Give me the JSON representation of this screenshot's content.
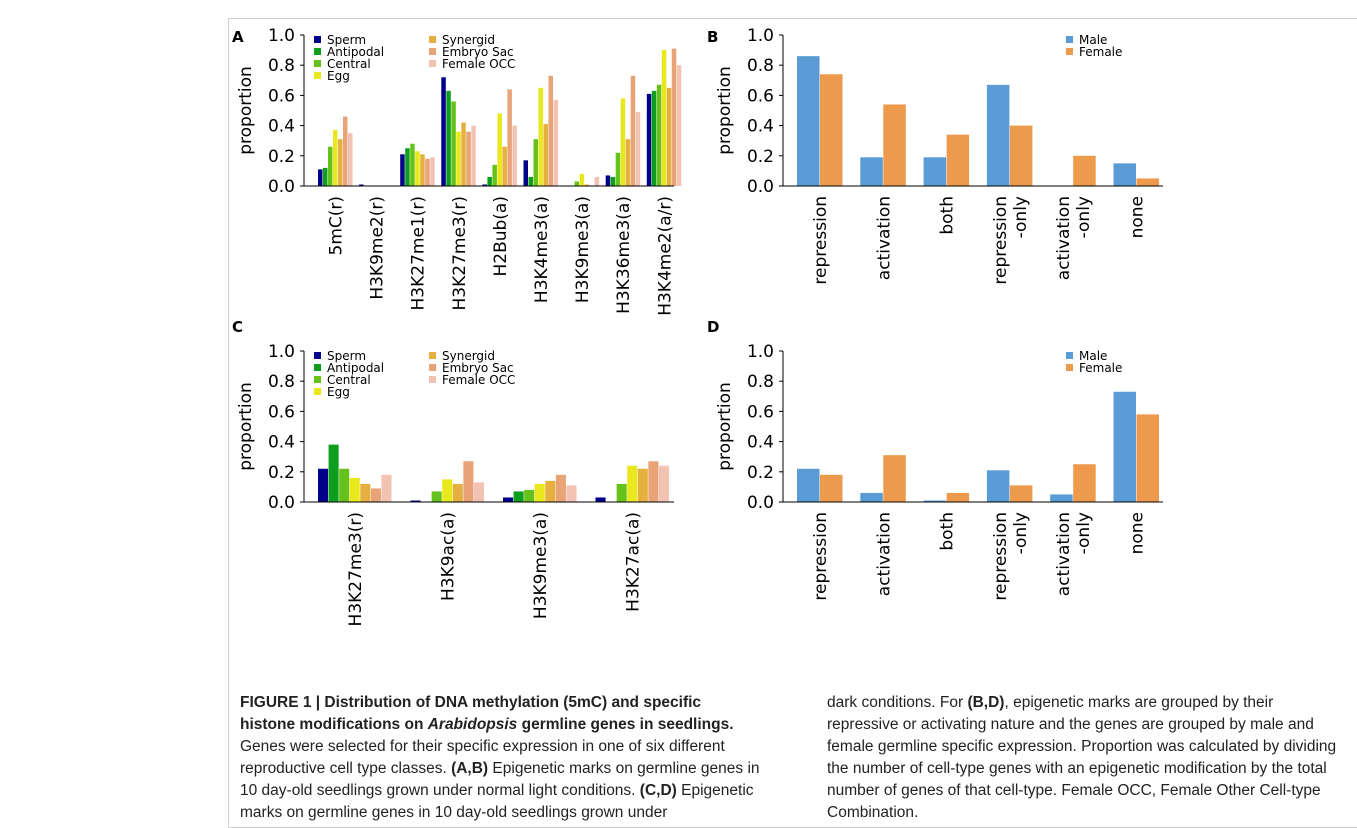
{
  "panels": [
    {
      "letter": "A",
      "chart_data": {
        "type": "bar",
        "ylabel": "proportion",
        "ylim": [
          0,
          1.0
        ],
        "yticks": [
          "0.0",
          "0.2",
          "0.4",
          "0.6",
          "0.8",
          "1.0"
        ],
        "legend_position": "top-left",
        "categories": [
          "5mC(r)",
          "H3K9me2(r)",
          "H3K27me1(r)",
          "H3K27me3(r)",
          "H2Bub(a)",
          "H3K4me3(a)",
          "H3K9me3(a)",
          "H3K36me3(a)",
          "H3K4me2(a/r)"
        ],
        "series": [
          {
            "name": "Sperm",
            "color": "#00008b",
            "values": [
              0.11,
              0.01,
              0.21,
              0.72,
              0.01,
              0.17,
              0.0,
              0.07,
              0.61
            ]
          },
          {
            "name": "Antipodal",
            "color": "#0d9e1e",
            "values": [
              0.12,
              0.0,
              0.25,
              0.63,
              0.06,
              0.06,
              0.0,
              0.06,
              0.63
            ]
          },
          {
            "name": "Central",
            "color": "#66c21a",
            "values": [
              0.26,
              0.0,
              0.28,
              0.56,
              0.14,
              0.31,
              0.03,
              0.22,
              0.67
            ]
          },
          {
            "name": "Egg",
            "color": "#e8e81c",
            "values": [
              0.37,
              0.0,
              0.23,
              0.36,
              0.48,
              0.65,
              0.08,
              0.58,
              0.9
            ]
          },
          {
            "name": "Synergid",
            "color": "#e5b040",
            "values": [
              0.31,
              0.0,
              0.21,
              0.42,
              0.26,
              0.41,
              0.01,
              0.31,
              0.65
            ]
          },
          {
            "name": "Embryo Sac",
            "color": "#e8a377",
            "values": [
              0.46,
              0.0,
              0.18,
              0.36,
              0.64,
              0.73,
              0.0,
              0.73,
              0.91
            ]
          },
          {
            "name": "Female OCC",
            "color": "#f2c3b3",
            "values": [
              0.35,
              0.0,
              0.19,
              0.4,
              0.4,
              0.57,
              0.06,
              0.49,
              0.8
            ]
          }
        ]
      }
    },
    {
      "letter": "B",
      "chart_data": {
        "type": "bar",
        "ylabel": "proportion",
        "ylim": [
          0,
          1.0
        ],
        "yticks": [
          "0.0",
          "0.2",
          "0.4",
          "0.6",
          "0.8",
          "1.0"
        ],
        "legend_position": "top-right",
        "categories": [
          "repression",
          "activation",
          "both",
          "repression\n-only",
          "activation\n-only",
          "none"
        ],
        "series": [
          {
            "name": "Male",
            "color": "#5a9bd5",
            "values": [
              0.86,
              0.19,
              0.19,
              0.67,
              0.0,
              0.15
            ]
          },
          {
            "name": "Female",
            "color": "#ed9a4c",
            "values": [
              0.74,
              0.54,
              0.34,
              0.4,
              0.2,
              0.05
            ]
          }
        ]
      }
    },
    {
      "letter": "C",
      "chart_data": {
        "type": "bar",
        "ylabel": "proportion",
        "ylim": [
          0,
          1.0
        ],
        "yticks": [
          "0.0",
          "0.2",
          "0.4",
          "0.6",
          "0.8",
          "1.0"
        ],
        "legend_position": "top-left",
        "categories": [
          "H3K27me3(r)",
          "H3K9ac(a)",
          "H3K9me3(a)",
          "H3K27ac(a)"
        ],
        "series": [
          {
            "name": "Sperm",
            "color": "#00008b",
            "values": [
              0.22,
              0.01,
              0.03,
              0.03
            ]
          },
          {
            "name": "Antipodal",
            "color": "#0d9e1e",
            "values": [
              0.38,
              0.0,
              0.07,
              0.0
            ]
          },
          {
            "name": "Central",
            "color": "#66c21a",
            "values": [
              0.22,
              0.07,
              0.08,
              0.12
            ]
          },
          {
            "name": "Egg",
            "color": "#e8e81c",
            "values": [
              0.16,
              0.15,
              0.12,
              0.24
            ]
          },
          {
            "name": "Synergid",
            "color": "#e5b040",
            "values": [
              0.12,
              0.12,
              0.14,
              0.22
            ]
          },
          {
            "name": "Embryo Sac",
            "color": "#e8a377",
            "values": [
              0.09,
              0.27,
              0.18,
              0.27
            ]
          },
          {
            "name": "Female OCC",
            "color": "#f2c3b3",
            "values": [
              0.18,
              0.13,
              0.11,
              0.24
            ]
          }
        ]
      }
    },
    {
      "letter": "D",
      "chart_data": {
        "type": "bar",
        "ylabel": "proportion",
        "ylim": [
          0,
          1.0
        ],
        "yticks": [
          "0.0",
          "0.2",
          "0.4",
          "0.6",
          "0.8",
          "1.0"
        ],
        "legend_position": "top-right",
        "categories": [
          "repression",
          "activation",
          "both",
          "repression\n-only",
          "activation\n-only",
          "none"
        ],
        "series": [
          {
            "name": "Male",
            "color": "#5a9bd5",
            "values": [
              0.22,
              0.06,
              0.01,
              0.21,
              0.05,
              0.73
            ]
          },
          {
            "name": "Female",
            "color": "#ed9a4c",
            "values": [
              0.18,
              0.31,
              0.06,
              0.11,
              0.25,
              0.58
            ]
          }
        ]
      }
    }
  ],
  "caption": {
    "title_1": "FIGURE 1 | Distribution of DNA methylation (5mC) and specific histone modifications on ",
    "title_italic": "Arabidopsis",
    "title_2": " germline genes in seedlings.",
    "text_1": " Genes were selected for their specific expression in one of six different reproductive cell type classes. ",
    "ref_ab": "(A,B)",
    "text_2": " Epigenetic marks on germline genes in 10 day-old seedlings grown under normal light conditions. ",
    "ref_cd": "(C,D)",
    "text_3": " Epigenetic marks on germline genes in 10 day-old seedlings grown under",
    "text_4": "dark conditions. For ",
    "ref_bd": "(B,D)",
    "text_5": ", epigenetic marks are grouped by their repressive or activating nature and the genes are grouped by male and female germline specific expression. Proportion was calculated by dividing the number of cell-type genes with an epigenetic modification by the total number of genes of that cell-type. Female OCC, Female Other Cell-type Combination."
  }
}
